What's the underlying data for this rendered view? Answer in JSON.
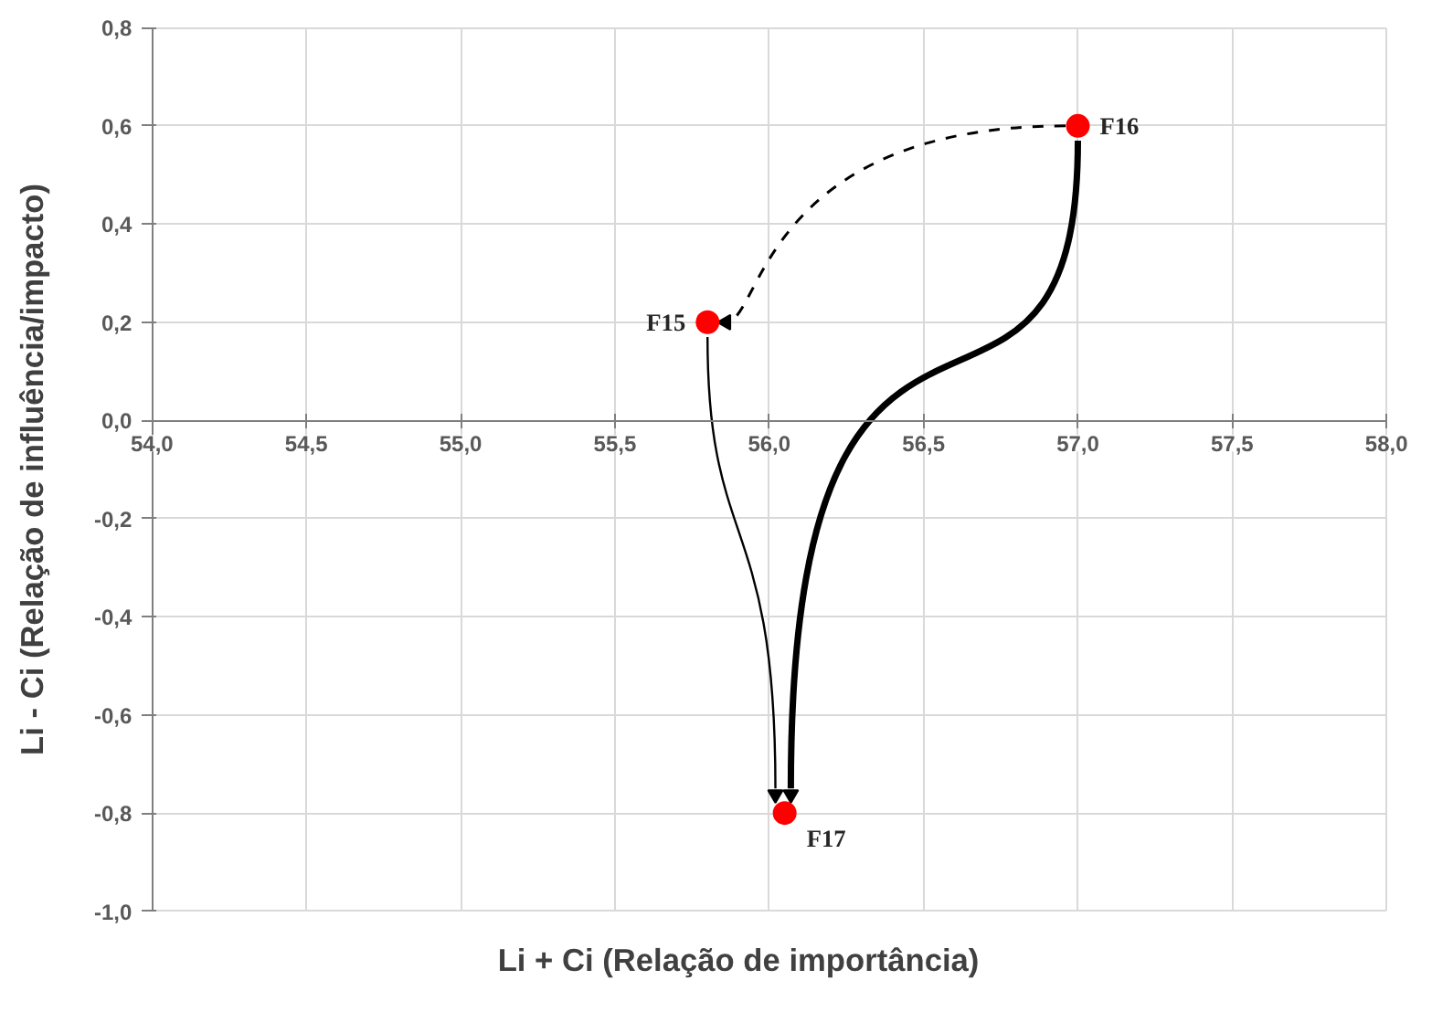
{
  "chart_data": {
    "type": "scatter",
    "xlabel": "Li + Ci (Relação de importância)",
    "ylabel": "Li - Ci (Relação de influência/impacto)",
    "x": [
      55.8,
      57.0,
      56.05
    ],
    "values": [
      0.2,
      0.6,
      -0.8
    ],
    "value_labels": [
      "F15",
      "F16",
      "F17"
    ],
    "color": "#ff0000",
    "marker": "circle",
    "xlim": [
      54.0,
      58.0
    ],
    "ylim": [
      -1.0,
      0.8
    ],
    "xticks": [
      {
        "value": 54.0,
        "label": "54,0"
      },
      {
        "value": 54.5,
        "label": "54,5"
      },
      {
        "value": 55.0,
        "label": "55,0"
      },
      {
        "value": 55.5,
        "label": "55,5"
      },
      {
        "value": 56.0,
        "label": "56,0"
      },
      {
        "value": 56.5,
        "label": "56,5"
      },
      {
        "value": 57.0,
        "label": "57,0"
      },
      {
        "value": 57.5,
        "label": "57,5"
      },
      {
        "value": 58.0,
        "label": "58,0"
      }
    ],
    "yticks": [
      {
        "value": -1.0,
        "label": "-1,0"
      },
      {
        "value": -0.8,
        "label": "-0,8"
      },
      {
        "value": -0.6,
        "label": "-0,6"
      },
      {
        "value": -0.4,
        "label": "-0,4"
      },
      {
        "value": -0.2,
        "label": "-0,2"
      },
      {
        "value": 0.0,
        "label": "0,0"
      },
      {
        "value": 0.2,
        "label": "0,2"
      },
      {
        "value": 0.4,
        "label": "0,4"
      },
      {
        "value": 0.6,
        "label": "0,6"
      },
      {
        "value": 0.8,
        "label": "0,8"
      }
    ],
    "grid": true
  }
}
